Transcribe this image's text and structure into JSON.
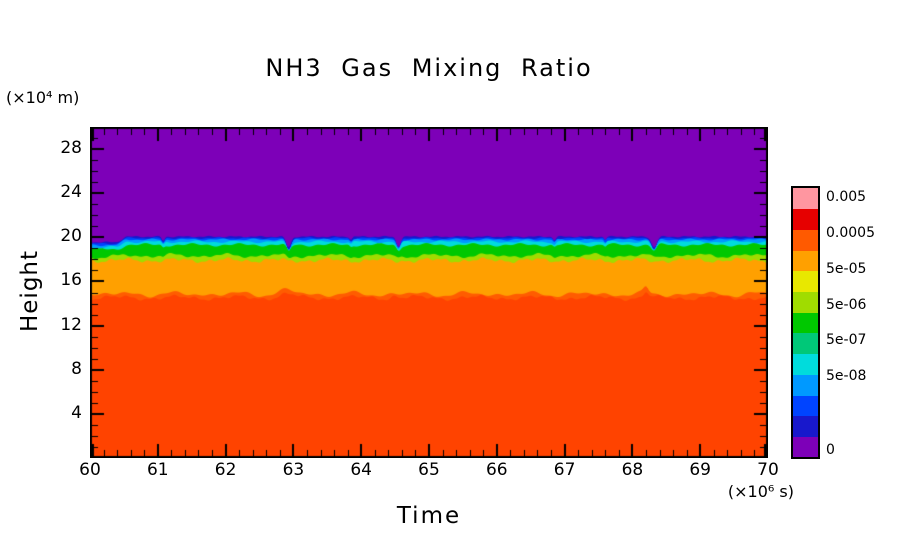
{
  "title": "NH3 Gas Mixing Ratio",
  "axes": {
    "x": {
      "label": "Time",
      "unit": "(×10⁶ s)",
      "range": [
        60,
        70
      ],
      "ticks": [
        60,
        61,
        62,
        63,
        64,
        65,
        66,
        67,
        68,
        69,
        70
      ],
      "minor_step": 0.2
    },
    "y": {
      "label": "Height",
      "unit": "(×10⁴ m)",
      "range": [
        0,
        30
      ],
      "ticks": [
        4,
        8,
        12,
        16,
        20,
        24,
        28
      ],
      "minor_step": 1
    }
  },
  "colorbar": {
    "labels_top_to_bottom": [
      "0.005",
      "0.0005",
      "5e-05",
      "5e-06",
      "5e-07",
      "5e-08",
      "0"
    ],
    "label_fractions_from_bottom": [
      0.959,
      0.826,
      0.693,
      0.559,
      0.426,
      0.293,
      0.02
    ],
    "colors_bottom_to_top": [
      "#7D00B8",
      "#1818CC",
      "#0044FF",
      "#0099FF",
      "#00DCDC",
      "#00C878",
      "#00C800",
      "#A0DC00",
      "#E8E800",
      "#FFA000",
      "#FF5A00",
      "#E60000",
      "#FF96A0"
    ]
  },
  "chart_data": {
    "type": "heatmap",
    "title": "NH3 Gas Mixing Ratio",
    "xlabel": "Time (×10⁶ s)",
    "ylabel": "Height (×10⁴ m)",
    "xlim": [
      60,
      70
    ],
    "ylim": [
      0,
      30
    ],
    "contour_levels": [
      "0",
      "5e-08",
      "5e-07",
      "5e-06",
      "5e-05",
      "0.0005",
      "0.005"
    ],
    "description": "Filled contour of NH3 gas mixing ratio vs time and height: high values (~0.0005-0.005) below ~15e4 m, decreasing through orange/green/blue bands between ~15e4 and ~20e4 m, and ~0 (purple) above ~20e4 m",
    "colors_bottom_to_top_layers": [
      "#FF4300",
      "#FF5C00",
      "#FFA000",
      "#A0DC00",
      "#00C800",
      "#00DCDC",
      "#0099FF",
      "#0044FF",
      "#1818CC",
      "#7D00B8"
    ],
    "boundaries_bottom_to_top": [
      {
        "height": 14.52,
        "wiggle": [
          [
            0.15,
            7.1,
            0
          ],
          [
            0.09,
            19.3,
            1.2
          ],
          [
            0.05,
            43,
            0.5
          ]
        ],
        "bumps": [
          [
            62.9,
            0.15,
            0.3
          ],
          [
            68.2,
            0.045,
            0.55
          ],
          [
            64.5,
            0.06,
            0.2
          ]
        ],
        "step_scale": 0,
        "notch_scale": 0
      },
      {
        "height": 14.85,
        "wiggle": [
          [
            0.15,
            7.3,
            0.3
          ],
          [
            0.1,
            11.7,
            2.0
          ],
          [
            0.07,
            23.9,
            1
          ]
        ],
        "bumps": [
          [
            62.9,
            0.15,
            0.35
          ],
          [
            68.2,
            0.05,
            0.5
          ]
        ],
        "step_scale": 0,
        "notch_scale": 0
      },
      {
        "height": 17.92,
        "wiggle": [
          [
            0.13,
            8.3,
            2
          ],
          [
            0.09,
            21.7,
            0
          ],
          [
            0.05,
            47,
            1
          ]
        ],
        "bumps": [],
        "step_scale": 0,
        "notch_scale": 0.1
      },
      {
        "height": 18.34,
        "wiggle": [
          [
            0.13,
            8.1,
            2.1
          ],
          [
            0.07,
            15.1,
            1
          ],
          [
            0.05,
            37,
            0
          ]
        ],
        "bumps": [],
        "step_scale": 0.2,
        "notch_scale": 0.25
      },
      {
        "height": 19.32,
        "wiggle": [
          [
            0.1,
            9.1,
            1
          ],
          [
            0.06,
            27.3,
            0
          ]
        ],
        "bumps": [],
        "step_scale": 0.8,
        "notch_scale": 0.55
      },
      {
        "height": 19.6,
        "wiggle": [
          [
            0.08,
            10.3,
            2
          ],
          [
            0.05,
            24.7,
            1
          ]
        ],
        "bumps": [],
        "step_scale": 1,
        "notch_scale": 0.8
      },
      {
        "height": 19.8,
        "wiggle": [
          [
            0.06,
            12.7,
            0.5
          ],
          [
            0.04,
            29.3,
            1.5
          ]
        ],
        "bumps": [],
        "step_scale": 1,
        "notch_scale": 0.9
      },
      {
        "height": 19.93,
        "wiggle": [
          [
            0.05,
            14.3,
            2.5
          ],
          [
            0.03,
            33.1,
            0.7
          ]
        ],
        "bumps": [],
        "step_scale": 1,
        "notch_scale": 1
      },
      {
        "height": 20.06,
        "wiggle": [
          [
            0.04,
            16.9,
            1
          ],
          [
            0.03,
            41.3,
            2
          ]
        ],
        "bumps": [],
        "step_scale": 1,
        "notch_scale": 1
      }
    ],
    "features": {
      "left_step": {
        "ramp_from": 60.38,
        "ramp_to": 60.55,
        "offset": -0.5
      },
      "notches": [
        {
          "time": 62.93,
          "width": 0.05,
          "depth": 0.95
        },
        {
          "time": 64.55,
          "width": 0.045,
          "depth": 0.85
        },
        {
          "time": 68.32,
          "width": 0.055,
          "depth": 0.95
        },
        {
          "time": 61.08,
          "width": 0.03,
          "depth": 0.35
        },
        {
          "time": 66.85,
          "width": 0.03,
          "depth": 0.3
        },
        {
          "time": 63.85,
          "width": 0.028,
          "depth": 0.25
        },
        {
          "time": 67.6,
          "width": 0.025,
          "depth": 0.25
        }
      ]
    }
  }
}
